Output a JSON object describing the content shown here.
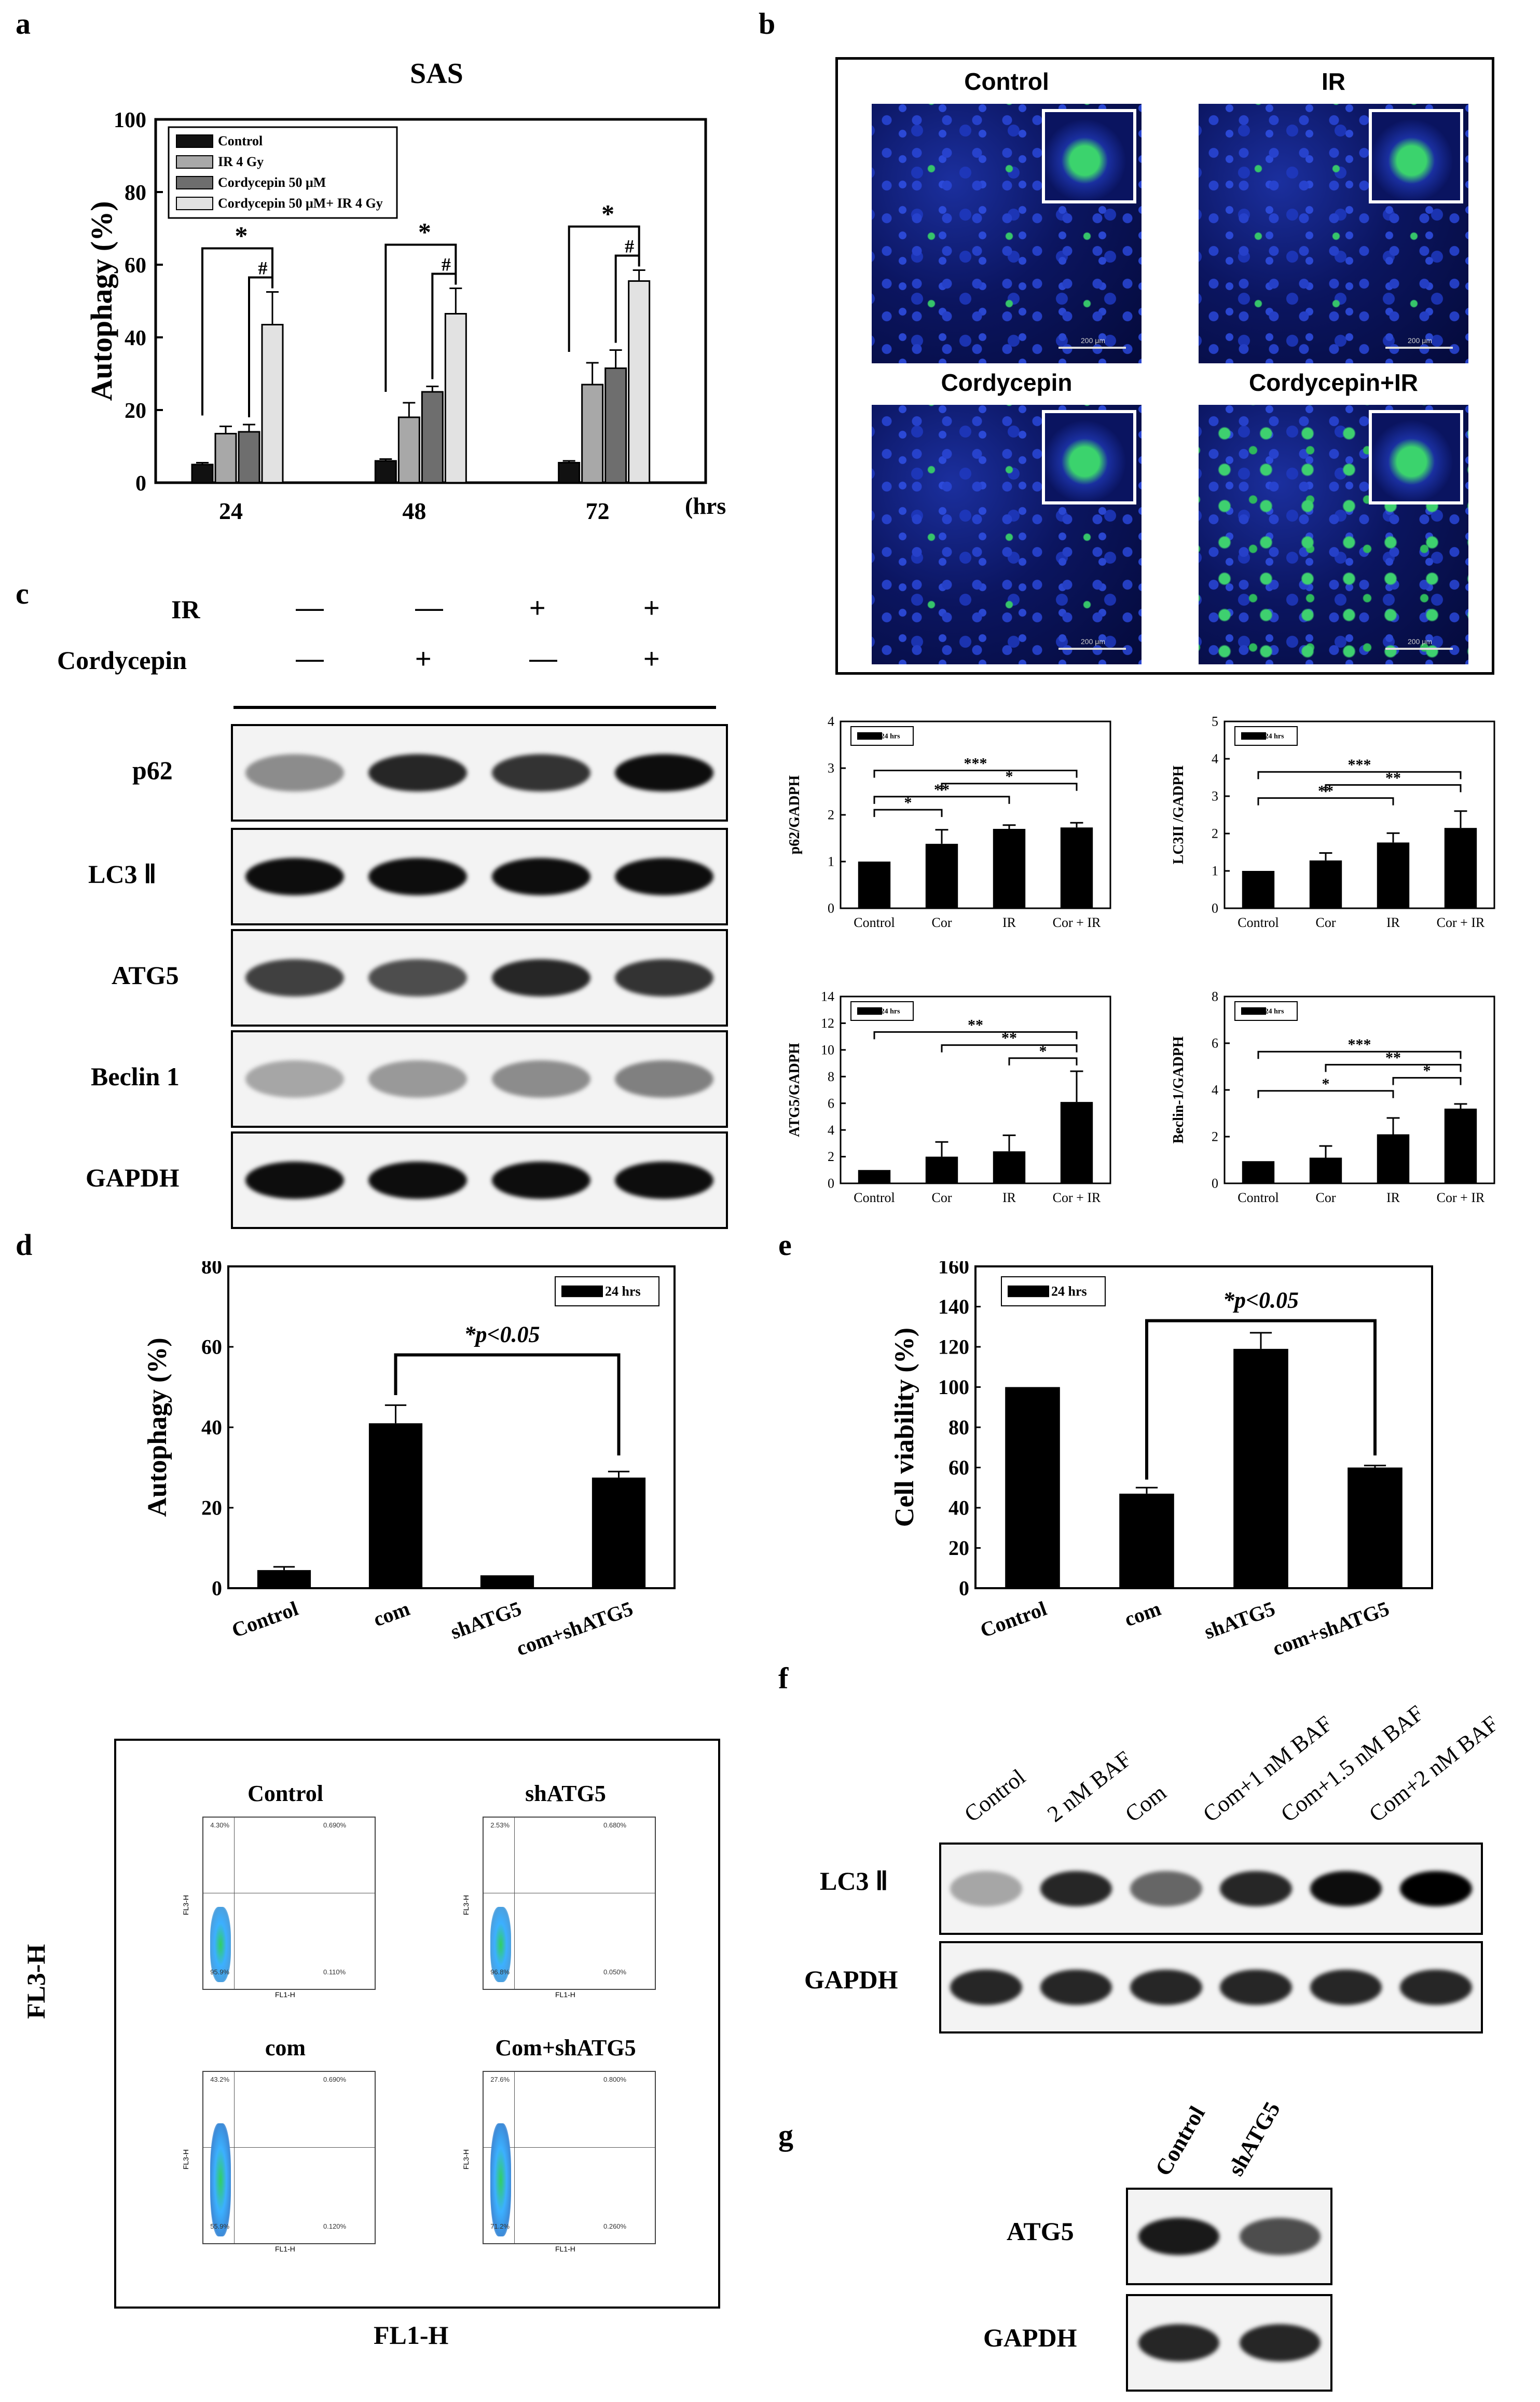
{
  "panel_labels": {
    "a": "a",
    "b": "b",
    "c": "c",
    "d": "d",
    "e": "e",
    "f": "f",
    "g": "g"
  },
  "chart_data": [
    {
      "id": "a",
      "type": "bar",
      "title": "SAS",
      "ylabel": "Autophagy (%)",
      "xlabel": "(hrs)",
      "ylim": [
        0,
        100
      ],
      "yticks": [
        0,
        20,
        40,
        60,
        80,
        100
      ],
      "categories": [
        "24",
        "48",
        "72"
      ],
      "legend_position": "top-left",
      "series": [
        {
          "name": "Control",
          "color": "#111111",
          "values": [
            5,
            6,
            5.5
          ],
          "errors": [
            0.5,
            0.5,
            0.5
          ]
        },
        {
          "name": "IR 4 Gy",
          "color": "#a8a8a8",
          "values": [
            13.5,
            18,
            27
          ],
          "errors": [
            2,
            4,
            6
          ]
        },
        {
          "name": "Cordycepin 50 μM",
          "color": "#6e6e6e",
          "values": [
            14,
            25,
            31.5
          ],
          "errors": [
            2,
            1.5,
            5
          ]
        },
        {
          "name": "Cordycepin 50 μM+ IR 4 Gy",
          "color": "#e2e2e2",
          "values": [
            43.5,
            46.5,
            55.5
          ],
          "errors": [
            9,
            7,
            3
          ]
        }
      ],
      "annotations": [
        "*",
        "#",
        "*",
        "#",
        "*",
        "#"
      ]
    },
    {
      "id": "b-p62",
      "type": "bar",
      "ylabel": "p62/GADPH",
      "legend": "24 hrs",
      "categories": [
        "Control",
        "Cor",
        "IR",
        "Cor + IR"
      ],
      "values": [
        1,
        1.38,
        1.7,
        1.73
      ],
      "errors": [
        0,
        0.3,
        0.08,
        0.1
      ],
      "ylim": [
        0,
        4
      ],
      "yticks": [
        0,
        1,
        2,
        3,
        4
      ],
      "significance": [
        "*",
        "**",
        "*",
        "***"
      ]
    },
    {
      "id": "b-lc3",
      "type": "bar",
      "ylabel": "LC3II /GADPH",
      "legend": "24 hrs",
      "categories": [
        "Control",
        "Cor",
        "IR",
        "Cor + IR"
      ],
      "values": [
        1,
        1.28,
        1.76,
        2.15
      ],
      "errors": [
        0,
        0.2,
        0.25,
        0.45
      ],
      "ylim": [
        0,
        5
      ],
      "yticks": [
        0,
        1,
        2,
        3,
        4,
        5
      ],
      "significance": [
        "**",
        "**",
        "***"
      ]
    },
    {
      "id": "b-atg5",
      "type": "bar",
      "ylabel": "ATG5/GADPH",
      "legend": "24 hrs",
      "categories": [
        "Control",
        "Cor",
        "IR",
        "Cor + IR"
      ],
      "values": [
        1,
        2,
        2.4,
        6.1
      ],
      "errors": [
        0,
        1.1,
        1.2,
        2.3
      ],
      "ylim": [
        0,
        14
      ],
      "yticks": [
        0,
        2,
        4,
        6,
        8,
        10,
        12,
        14
      ],
      "significance": [
        "*",
        "**",
        "**"
      ]
    },
    {
      "id": "b-beclin",
      "type": "bar",
      "ylabel": "Beclin-1/GADPH",
      "legend": "24 hrs",
      "categories": [
        "Control",
        "Cor",
        "IR",
        "Cor + IR"
      ],
      "values": [
        0.95,
        1.1,
        2.1,
        3.2
      ],
      "errors": [
        0,
        0.5,
        0.7,
        0.2
      ],
      "ylim": [
        0,
        8
      ],
      "yticks": [
        0,
        2,
        4,
        6,
        8
      ],
      "significance": [
        "*",
        "*",
        "**",
        "***"
      ]
    },
    {
      "id": "d",
      "type": "bar",
      "ylabel": "Autophagy (%)",
      "legend": "24 hrs",
      "annotation": "*p<0.05",
      "categories": [
        "Control",
        "com",
        "shATG5",
        "com+shATG5"
      ],
      "values": [
        4.5,
        41,
        3.2,
        27.5
      ],
      "errors": [
        0.8,
        4.5,
        0,
        1.5
      ],
      "ylim": [
        0,
        80
      ],
      "yticks": [
        0,
        20,
        40,
        60,
        80
      ]
    },
    {
      "id": "e",
      "type": "bar",
      "ylabel": "Cell viability (%)",
      "legend": "24 hrs",
      "annotation": "*p<0.05",
      "categories": [
        "Control",
        "com",
        "shATG5",
        "com+shATG5"
      ],
      "values": [
        100,
        47,
        119,
        60
      ],
      "errors": [
        0,
        3,
        8,
        1
      ],
      "ylim": [
        0,
        160
      ],
      "yticks": [
        0,
        20,
        40,
        60,
        80,
        100,
        120,
        140,
        160
      ]
    }
  ],
  "panel_b": {
    "images": [
      {
        "label": "Control",
        "green": "sparse"
      },
      {
        "label": "IR",
        "green": "sparse"
      },
      {
        "label": "Cordycepin",
        "green": "medium"
      },
      {
        "label": "Cordycepin+IR",
        "green": "dense"
      }
    ],
    "scale_text": "200 μm"
  },
  "panel_c": {
    "treatments": [
      {
        "label": "IR",
        "signs": [
          "—",
          "—",
          "+",
          "+"
        ]
      },
      {
        "label": "Cordycepin",
        "signs": [
          "—",
          "+",
          "—",
          "+"
        ]
      }
    ],
    "rows": [
      {
        "label": "p62",
        "intensity": [
          0.45,
          0.85,
          0.8,
          0.95
        ]
      },
      {
        "label": "LC3 Ⅱ",
        "intensity": [
          0.95,
          0.95,
          0.95,
          0.95
        ]
      },
      {
        "label": "ATG5",
        "intensity": [
          0.75,
          0.7,
          0.85,
          0.8
        ]
      },
      {
        "label": "Beclin 1",
        "intensity": [
          0.35,
          0.4,
          0.45,
          0.5
        ]
      },
      {
        "label": "GAPDH",
        "intensity": [
          0.95,
          0.95,
          0.95,
          0.95
        ]
      }
    ]
  },
  "flow": {
    "xlabel": "FL1-H",
    "ylabel": "FL3-H",
    "axis_x": "FL1-H",
    "axis_y": "FL3-H",
    "plots": [
      {
        "title": "Control",
        "q1": "4.30%",
        "q2": "0.690%",
        "q3": "0.110%",
        "q4": "95.9%"
      },
      {
        "title": "shATG5",
        "q1": "2.53%",
        "q2": "0.680%",
        "q3": "0.050%",
        "q4": "96.8%"
      },
      {
        "title": "com",
        "q1": "43.2%",
        "q2": "0.690%",
        "q3": "0.120%",
        "q4": "55.9%"
      },
      {
        "title": "Com+shATG5",
        "q1": "27.6%",
        "q2": "0.800%",
        "q3": "0.260%",
        "q4": "71.2%"
      }
    ]
  },
  "panel_f": {
    "lanes": [
      "Control",
      "2 nM BAF",
      "Com",
      "Com+1 nM BAF",
      "Com+1.5 nM BAF",
      "Com+2 nM BAF"
    ],
    "rows": [
      {
        "label": "LC3 Ⅱ",
        "intensity": [
          0.35,
          0.85,
          0.6,
          0.85,
          0.95,
          1.0
        ]
      },
      {
        "label": "GAPDH",
        "intensity": [
          0.85,
          0.85,
          0.85,
          0.85,
          0.85,
          0.85
        ]
      }
    ]
  },
  "panel_g": {
    "lanes": [
      "Control",
      "shATG5"
    ],
    "rows": [
      {
        "label": "ATG5",
        "intensity": [
          0.9,
          0.7
        ]
      },
      {
        "label": "GAPDH",
        "intensity": [
          0.85,
          0.85
        ]
      }
    ]
  }
}
